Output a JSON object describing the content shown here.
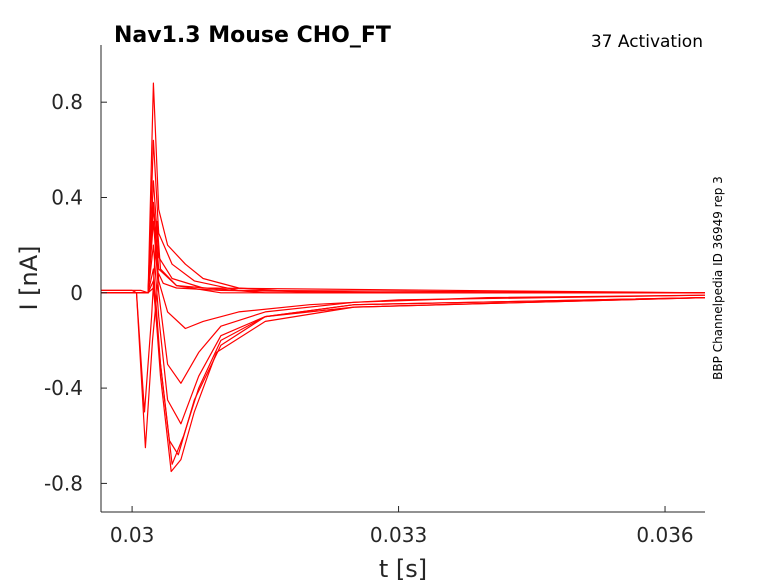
{
  "chart_data": {
    "type": "line",
    "title": "Nav1.3  Mouse  CHO_FT",
    "subtitle": "37  Activation",
    "side_label": "BBP Channelpedia ID 36949 rep 3",
    "xlabel": "t [s]",
    "ylabel": "I [nA]",
    "xlim": [
      0.02965,
      0.03645
    ],
    "ylim": [
      -0.92,
      1.04
    ],
    "x_ticks": [
      0.03,
      0.033,
      0.036
    ],
    "x_tick_labels": [
      "0.03",
      "0.033",
      "0.036"
    ],
    "y_ticks": [
      0.8,
      0.4,
      0,
      -0.4,
      -0.8
    ],
    "y_tick_labels": [
      "0.8",
      "0.4",
      "0",
      "-0.4",
      "-0.8"
    ],
    "grid": false,
    "line_color": "#ff0000",
    "series": [
      {
        "values": [
          [
            0.02965,
            0.0
          ],
          [
            0.03,
            0.0
          ],
          [
            0.03005,
            0.0
          ],
          [
            0.03015,
            -0.65
          ],
          [
            0.03023,
            -0.2
          ],
          [
            0.0303,
            0.08
          ],
          [
            0.03035,
            0.04
          ],
          [
            0.0305,
            0.02
          ],
          [
            0.031,
            0.01
          ],
          [
            0.033,
            0.0
          ],
          [
            0.03645,
            0.0
          ]
        ]
      },
      {
        "values": [
          [
            0.02965,
            0.01
          ],
          [
            0.03,
            0.01
          ],
          [
            0.03005,
            0.0
          ],
          [
            0.03014,
            -0.5
          ],
          [
            0.03022,
            -0.1
          ],
          [
            0.03028,
            0.3
          ],
          [
            0.03032,
            0.1
          ],
          [
            0.0305,
            0.03
          ],
          [
            0.0315,
            0.0
          ],
          [
            0.03645,
            0.0
          ]
        ]
      },
      {
        "values": [
          [
            0.02965,
            0.0
          ],
          [
            0.0301,
            0.0
          ],
          [
            0.03018,
            0.0
          ],
          [
            0.03024,
            0.88
          ],
          [
            0.0303,
            0.35
          ],
          [
            0.0304,
            0.2
          ],
          [
            0.0306,
            0.12
          ],
          [
            0.0308,
            0.06
          ],
          [
            0.0312,
            0.02
          ],
          [
            0.032,
            0.0
          ],
          [
            0.03645,
            0.0
          ]
        ]
      },
      {
        "values": [
          [
            0.02965,
            0.0
          ],
          [
            0.0301,
            0.0
          ],
          [
            0.03018,
            0.0
          ],
          [
            0.03024,
            0.64
          ],
          [
            0.0303,
            0.25
          ],
          [
            0.03045,
            0.12
          ],
          [
            0.0307,
            0.05
          ],
          [
            0.0312,
            0.01
          ],
          [
            0.03645,
            0.0
          ]
        ]
      },
      {
        "values": [
          [
            0.02965,
            0.01
          ],
          [
            0.0301,
            0.01
          ],
          [
            0.03018,
            0.0
          ],
          [
            0.03024,
            0.47
          ],
          [
            0.0303,
            0.15
          ],
          [
            0.03045,
            0.06
          ],
          [
            0.0308,
            0.02
          ],
          [
            0.03645,
            0.0
          ]
        ]
      },
      {
        "values": [
          [
            0.02965,
            0.0
          ],
          [
            0.0301,
            0.0
          ],
          [
            0.03018,
            0.0
          ],
          [
            0.03024,
            0.38
          ],
          [
            0.0303,
            0.1
          ],
          [
            0.0305,
            0.03
          ],
          [
            0.031,
            0.0
          ],
          [
            0.03645,
            0.0
          ]
        ]
      },
      {
        "values": [
          [
            0.02965,
            0.0
          ],
          [
            0.0301,
            0.0
          ],
          [
            0.03018,
            0.0
          ],
          [
            0.03024,
            0.36
          ],
          [
            0.0303,
            0.05
          ],
          [
            0.0304,
            -0.08
          ],
          [
            0.0306,
            -0.15
          ],
          [
            0.0308,
            -0.12
          ],
          [
            0.0312,
            -0.08
          ],
          [
            0.032,
            -0.05
          ],
          [
            0.033,
            -0.03
          ],
          [
            0.03645,
            -0.01
          ]
        ]
      },
      {
        "values": [
          [
            0.02965,
            0.0
          ],
          [
            0.0301,
            0.0
          ],
          [
            0.03018,
            0.0
          ],
          [
            0.03024,
            0.3
          ],
          [
            0.0303,
            0.0
          ],
          [
            0.0304,
            -0.3
          ],
          [
            0.03055,
            -0.38
          ],
          [
            0.03075,
            -0.25
          ],
          [
            0.031,
            -0.14
          ],
          [
            0.0315,
            -0.08
          ],
          [
            0.0325,
            -0.04
          ],
          [
            0.034,
            -0.02
          ],
          [
            0.03645,
            -0.01
          ]
        ]
      },
      {
        "values": [
          [
            0.02965,
            0.0
          ],
          [
            0.0301,
            0.0
          ],
          [
            0.03018,
            0.0
          ],
          [
            0.03024,
            0.2
          ],
          [
            0.0303,
            -0.1
          ],
          [
            0.0304,
            -0.45
          ],
          [
            0.03055,
            -0.55
          ],
          [
            0.03075,
            -0.35
          ],
          [
            0.031,
            -0.18
          ],
          [
            0.0315,
            -0.1
          ],
          [
            0.0325,
            -0.05
          ],
          [
            0.03645,
            -0.02
          ]
        ]
      },
      {
        "values": [
          [
            0.02965,
            0.0
          ],
          [
            0.0301,
            0.0
          ],
          [
            0.03018,
            0.0
          ],
          [
            0.03024,
            0.1
          ],
          [
            0.03032,
            -0.3
          ],
          [
            0.03042,
            -0.62
          ],
          [
            0.03052,
            -0.68
          ],
          [
            0.0307,
            -0.45
          ],
          [
            0.031,
            -0.22
          ],
          [
            0.0315,
            -0.1
          ],
          [
            0.0325,
            -0.06
          ],
          [
            0.03645,
            -0.02
          ]
        ]
      },
      {
        "values": [
          [
            0.02965,
            0.0
          ],
          [
            0.0301,
            0.0
          ],
          [
            0.03018,
            0.0
          ],
          [
            0.03024,
            0.05
          ],
          [
            0.03032,
            -0.35
          ],
          [
            0.03044,
            -0.75
          ],
          [
            0.03055,
            -0.7
          ],
          [
            0.0307,
            -0.5
          ],
          [
            0.03095,
            -0.25
          ],
          [
            0.0315,
            -0.12
          ],
          [
            0.0325,
            -0.06
          ],
          [
            0.03645,
            -0.02
          ]
        ]
      },
      {
        "values": [
          [
            0.02965,
            0.0
          ],
          [
            0.0301,
            0.0
          ],
          [
            0.03018,
            0.0
          ],
          [
            0.03024,
            0.02
          ],
          [
            0.03032,
            -0.3
          ],
          [
            0.03045,
            -0.72
          ],
          [
            0.03058,
            -0.6
          ],
          [
            0.03075,
            -0.4
          ],
          [
            0.031,
            -0.2
          ],
          [
            0.0315,
            -0.1
          ],
          [
            0.0325,
            -0.05
          ],
          [
            0.03645,
            -0.02
          ]
        ]
      }
    ]
  }
}
